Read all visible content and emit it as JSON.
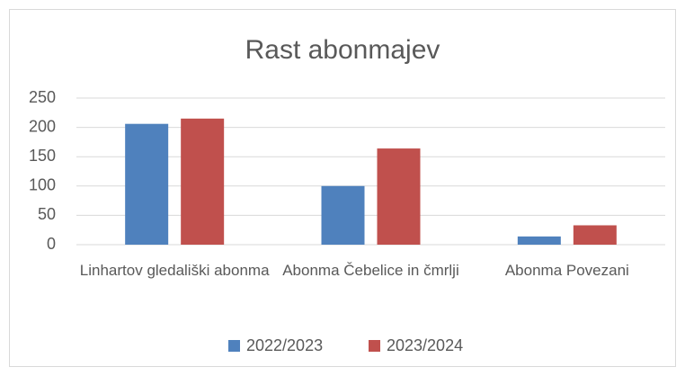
{
  "chart_data": {
    "type": "bar",
    "title": "Rast abonmajev",
    "categories": [
      "Linhartov gledališki abonma",
      "Abonma Čebelice in čmrlji",
      "Abonma Povezani"
    ],
    "series": [
      {
        "name": "2022/2023",
        "color": "#4f81bd",
        "values": [
          206,
          100,
          14
        ]
      },
      {
        "name": "2023/2024",
        "color": "#c0504d",
        "values": [
          215,
          164,
          33
        ]
      }
    ],
    "ylim": [
      0,
      250
    ],
    "yticks": [
      0,
      50,
      100,
      150,
      200,
      250
    ],
    "grid": true,
    "legend": "bottom"
  }
}
